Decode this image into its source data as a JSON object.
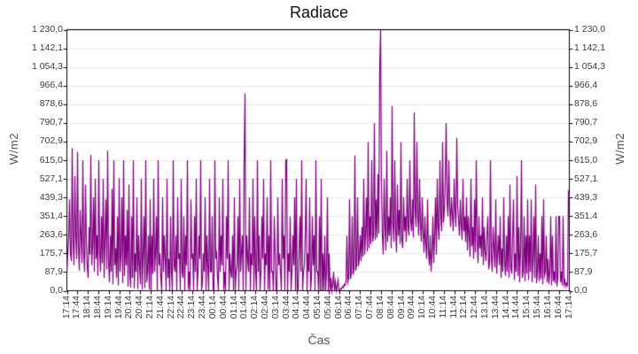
{
  "colors": {
    "line": "#800080",
    "grid": "#e8e8e8",
    "axis": "#000000",
    "tick_text": "#3c3c3c",
    "axis_title_text": "#555555",
    "title_text": "#111111",
    "background": "#ffffff"
  },
  "chart_data": {
    "type": "line",
    "title": "Radiace",
    "xlabel": "Čas",
    "ylabel": "W/m2",
    "ylabel_right": "W/m2",
    "ylim": [
      0,
      1230
    ],
    "grid": "horizontal-only",
    "legend": "none",
    "y_tick_values": [
      0,
      87.9,
      175.7,
      263.6,
      351.4,
      439.3,
      527.1,
      615.0,
      702.9,
      790.7,
      878.6,
      966.4,
      1054.3,
      1142.1,
      1230.0
    ],
    "y_tick_labels": [
      "0,0",
      "87,9",
      "175,7",
      "263,6",
      "351,4",
      "439,3",
      "527,1",
      "615,0",
      "702,9",
      "790,7",
      "878,6",
      "966,4",
      "1 054,3",
      "1 142,1",
      "1 230,0"
    ],
    "x_start": "17:14",
    "x_end": "17:14",
    "x_tick_interval_minutes": 30,
    "x_tick_labels": [
      "17:14",
      "17:44",
      "18:14",
      "18:44",
      "19:14",
      "19:44",
      "20:14",
      "20:44",
      "21:14",
      "21:44",
      "22:14",
      "22:44",
      "23:14",
      "23:44",
      "00:14",
      "00:44",
      "01:14",
      "01:44",
      "02:14",
      "02:44",
      "03:14",
      "03:44",
      "04:14",
      "04:44",
      "05:14",
      "05:44",
      "06:14",
      "06:44",
      "07:14",
      "07:44",
      "08:14",
      "08:44",
      "09:14",
      "09:44",
      "10:14",
      "10:44",
      "11:14",
      "11:44",
      "12:14",
      "12:44",
      "13:14",
      "13:44",
      "14:14",
      "14:44",
      "15:14",
      "15:44",
      "16:14",
      "16:44",
      "17:14"
    ],
    "series": [
      {
        "name": "Radiace",
        "color": "#800080",
        "units": "W/m2",
        "sample_interval_minutes": 2.54,
        "values": [
          88,
          180,
          260,
          430,
          175,
          140,
          672,
          230,
          120,
          540,
          260,
          150,
          655,
          210,
          95,
          380,
          250,
          130,
          615,
          175,
          90,
          500,
          230,
          110,
          60,
          300,
          170,
          640,
          120,
          210,
          440,
          90,
          527,
          150,
          260,
          70,
          615,
          180,
          90,
          350,
          130,
          527,
          60,
          240,
          430,
          100,
          660,
          140,
          40,
          260,
          90,
          480,
          30,
          615,
          120,
          200,
          60,
          350,
          25,
          530,
          90,
          170,
          440,
          35,
          615,
          70,
          260,
          120,
          380,
          20,
          500,
          80,
          15,
          350,
          60,
          615,
          10,
          175,
          90,
          440,
          8,
          260,
          120,
          30,
          527,
          5,
          175,
          350,
          12,
          615,
          40,
          90,
          260,
          6,
          430,
          0,
          260,
          80,
          527,
          90,
          175,
          350,
          0,
          615,
          120,
          175,
          60,
          0,
          440,
          90,
          260,
          150,
          0,
          527,
          60,
          150,
          0,
          350,
          90,
          0,
          615,
          120,
          90,
          260,
          0,
          440,
          150,
          175,
          0,
          527,
          90,
          60,
          350,
          0,
          260,
          120,
          615,
          5,
          90,
          0,
          430,
          150,
          175,
          0,
          350,
          90,
          527,
          0,
          90,
          260,
          150,
          615,
          0,
          40,
          175,
          90,
          440,
          0,
          260,
          120,
          0,
          527,
          90,
          90,
          350,
          0,
          0,
          615,
          150,
          175,
          60,
          0,
          440,
          90,
          260,
          120,
          527,
          3,
          90,
          0,
          350,
          150,
          615,
          0,
          175,
          90,
          60,
          260,
          0,
          440,
          0,
          90,
          120,
          350,
          0,
          527,
          90,
          175,
          260,
          0,
          615,
          930,
          0,
          260,
          150,
          90,
          440,
          0,
          175,
          120,
          527,
          0,
          350,
          90,
          0,
          615,
          90,
          260,
          0,
          90,
          350,
          150,
          527,
          0,
          175,
          120,
          440,
          5,
          260,
          0,
          615,
          90,
          90,
          0,
          350,
          175,
          0,
          0,
          440,
          120,
          175,
          90,
          0,
          527,
          150,
          260,
          0,
          615,
          618,
          0,
          175,
          90,
          350,
          0,
          90,
          260,
          120,
          440,
          0,
          527,
          0,
          0,
          175,
          350,
          90,
          615,
          0,
          90,
          120,
          260,
          527,
          0,
          175,
          90,
          440,
          0,
          60,
          350,
          120,
          260,
          0,
          615,
          90,
          90,
          0,
          350,
          0,
          527,
          0,
          175,
          0,
          260,
          0,
          90,
          440,
          0,
          175,
          0,
          60,
          0,
          30,
          90,
          0,
          40,
          0,
          20,
          50,
          0,
          5,
          10,
          8,
          20,
          15,
          30,
          25,
          45,
          260,
          40,
          60,
          430,
          55,
          80,
          350,
          75,
          100,
          638,
          95,
          120,
          440,
          115,
          150,
          260,
          140,
          300,
          160,
          527,
          170,
          260,
          440,
          185,
          700,
          200,
          350,
          220,
          615,
          230,
          260,
          790,
          240,
          430,
          250,
          550,
          270,
          1054,
          1230,
          480,
          260,
          170,
          527,
          300,
          190,
          660,
          230,
          350,
          260,
          440,
          200,
          870,
          310,
          230,
          615,
          280,
          180,
          500,
          260,
          380,
          220,
          700,
          240,
          200,
          440,
          280,
          350,
          230,
          527,
          300,
          260,
          615,
          330,
          280,
          430,
          250,
          840,
          380,
          300,
          700,
          350,
          260,
          527,
          310,
          230,
          440,
          280,
          180,
          350,
          220,
          150,
          430,
          190,
          120,
          260,
          90,
          175,
          350,
          130,
          260,
          440,
          170,
          527,
          300,
          240,
          615,
          350,
          280,
          700,
          320,
          380,
          527,
          790,
          420,
          350,
          615,
          400,
          300,
          440,
          360,
          280,
          527,
          380,
          300,
          720,
          400,
          330,
          260,
          430,
          310,
          240,
          527,
          280,
          350,
          230,
          440,
          190,
          350,
          260,
          160,
          527,
          210,
          300,
          150,
          430,
          180,
          615,
          240,
          130,
          350,
          200,
          260,
          160,
          440,
          120,
          300,
          180,
          140,
          260,
          350,
          100,
          130,
          615,
          160,
          90,
          300,
          200,
          110,
          430,
          80,
          175,
          260,
          120,
          350,
          60,
          200,
          90,
          440,
          130,
          70,
          260,
          90,
          350,
          60,
          500,
          110,
          80,
          260,
          430,
          50,
          175,
          90,
          540,
          70,
          300,
          40,
          200,
          615,
          60,
          90,
          350,
          45,
          260,
          80,
          430,
          50,
          260,
          90,
          430,
          40,
          150,
          350,
          60,
          500,
          35,
          90,
          260,
          45,
          175,
          55,
          350,
          30,
          430,
          70,
          90,
          260,
          40,
          150,
          30,
          90,
          350,
          25,
          260,
          45,
          90,
          35,
          350,
          20,
          60,
          350,
          350,
          40,
          90,
          25,
          350,
          30,
          50,
          20,
          35,
          25,
          460,
          440
        ]
      }
    ]
  }
}
